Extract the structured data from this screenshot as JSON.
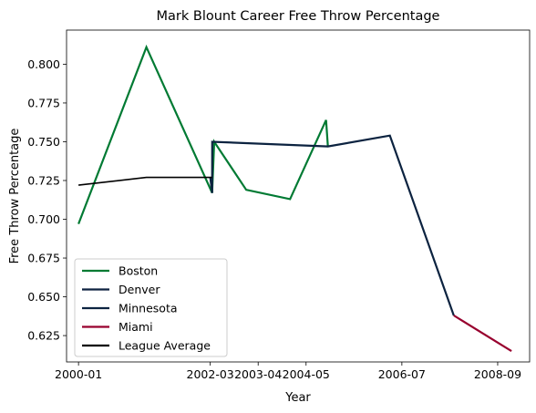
{
  "chart_data": {
    "type": "line",
    "title": "Mark Blount Career Free Throw Percentage",
    "xlabel": "Year",
    "ylabel": "Free Throw Percentage",
    "xlim": [
      "1999-10-01",
      "2009-06-01"
    ],
    "ylim": [
      0.608,
      0.822
    ],
    "x_ticks": [
      "2000-01",
      "2002-03",
      "2003-04",
      "2004-05",
      "2006-07",
      "2008-09"
    ],
    "y_ticks": [
      "0.625",
      "0.650",
      "0.675",
      "0.700",
      "0.725",
      "0.750",
      "0.775",
      "0.800"
    ],
    "legend_position": "lower-left",
    "grid": false,
    "series": [
      {
        "name": "Boston",
        "color": "#007A33",
        "points": [
          [
            "2000-01-01",
            0.697
          ],
          [
            "2001-06-01",
            0.811
          ],
          [
            "2002-10-15",
            0.717
          ],
          [
            "2002-11-01",
            0.75
          ],
          [
            "2003-07-01",
            0.719
          ],
          [
            "2004-06-01",
            0.713
          ],
          [
            "2005-03-01",
            0.764
          ],
          [
            "2005-03-15",
            0.747
          ]
        ]
      },
      {
        "name": "Denver",
        "color": "#0E2240",
        "points": [
          [
            "2002-10-01",
            0.727
          ],
          [
            "2002-10-15",
            0.717
          ]
        ]
      },
      {
        "name": "Minnesota",
        "color": "#0C2340",
        "points": [
          [
            "2002-10-15",
            0.717
          ],
          [
            "2002-10-16",
            0.75
          ],
          [
            "2005-03-15",
            0.747
          ],
          [
            "2006-07-01",
            0.754
          ],
          [
            "2007-11-01",
            0.638
          ]
        ]
      },
      {
        "name": "Miami",
        "color": "#98002E",
        "points": [
          [
            "2007-11-01",
            0.638
          ],
          [
            "2009-01-15",
            0.615
          ]
        ]
      },
      {
        "name": "League Average",
        "color": "#000000",
        "points": [
          [
            "2000-01-01",
            0.722
          ],
          [
            "2001-06-01",
            0.727
          ],
          [
            "2002-10-15",
            0.727
          ]
        ]
      }
    ]
  }
}
